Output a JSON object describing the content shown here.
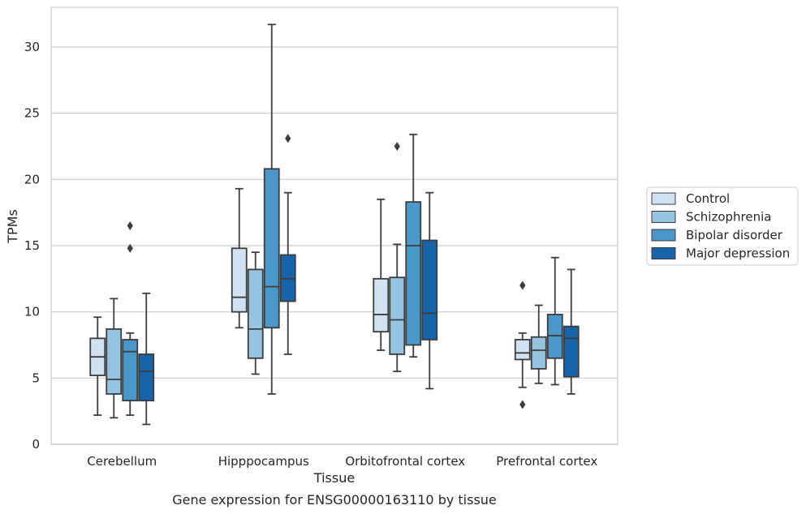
{
  "chart_data": {
    "type": "box",
    "title": "",
    "caption": "Gene expression for ENSG00000163110 by tissue",
    "xlabel": "Tissue",
    "ylabel": "TPMs",
    "ylim": [
      0,
      33
    ],
    "yticks": [
      0,
      5,
      10,
      15,
      20,
      25,
      30
    ],
    "grid": "horizontal",
    "legend_position": "right",
    "categories": [
      "Cerebellum",
      "Hipppocampus",
      "Orbitofrontal cortex",
      "Prefrontal cortex"
    ],
    "series": [
      {
        "name": "Control",
        "color": "#d0e1f2",
        "boxes": [
          {
            "whisker_low": 2.2,
            "q1": 5.2,
            "median": 6.6,
            "q3": 8.0,
            "whisker_high": 9.6,
            "outliers": []
          },
          {
            "whisker_low": 8.8,
            "q1": 10.0,
            "median": 11.1,
            "q3": 14.8,
            "whisker_high": 19.3,
            "outliers": []
          },
          {
            "whisker_low": 7.1,
            "q1": 8.5,
            "median": 9.8,
            "q3": 12.5,
            "whisker_high": 18.5,
            "outliers": []
          },
          {
            "whisker_low": 4.3,
            "q1": 6.4,
            "median": 6.9,
            "q3": 7.9,
            "whisker_high": 8.4,
            "outliers": [
              3.0,
              12.0
            ]
          }
        ]
      },
      {
        "name": "Schizophrenia",
        "color": "#94c4df",
        "boxes": [
          {
            "whisker_low": 2.0,
            "q1": 3.8,
            "median": 4.9,
            "q3": 8.7,
            "whisker_high": 11.0,
            "outliers": []
          },
          {
            "whisker_low": 5.3,
            "q1": 6.5,
            "median": 8.7,
            "q3": 13.2,
            "whisker_high": 14.5,
            "outliers": []
          },
          {
            "whisker_low": 5.5,
            "q1": 6.8,
            "median": 9.4,
            "q3": 12.6,
            "whisker_high": 15.1,
            "outliers": [
              22.5
            ]
          },
          {
            "whisker_low": 4.6,
            "q1": 5.7,
            "median": 7.1,
            "q3": 8.1,
            "whisker_high": 10.5,
            "outliers": []
          }
        ]
      },
      {
        "name": "Bipolar disorder",
        "color": "#4a98c9",
        "boxes": [
          {
            "whisker_low": 2.2,
            "q1": 3.3,
            "median": 7.0,
            "q3": 7.9,
            "whisker_high": 8.4,
            "outliers": [
              14.8,
              16.5
            ]
          },
          {
            "whisker_low": 3.8,
            "q1": 8.8,
            "median": 11.9,
            "q3": 20.8,
            "whisker_high": 31.7,
            "outliers": []
          },
          {
            "whisker_low": 6.6,
            "q1": 7.5,
            "median": 15.0,
            "q3": 18.3,
            "whisker_high": 23.4,
            "outliers": []
          },
          {
            "whisker_low": 4.5,
            "q1": 6.5,
            "median": 8.2,
            "q3": 9.8,
            "whisker_high": 14.1,
            "outliers": []
          }
        ]
      },
      {
        "name": "Major depression",
        "color": "#1764ab",
        "boxes": [
          {
            "whisker_low": 1.5,
            "q1": 3.3,
            "median": 5.5,
            "q3": 6.8,
            "whisker_high": 11.4,
            "outliers": []
          },
          {
            "whisker_low": 6.8,
            "q1": 10.8,
            "median": 12.5,
            "q3": 14.3,
            "whisker_high": 19.0,
            "outliers": [
              23.1
            ]
          },
          {
            "whisker_low": 4.2,
            "q1": 7.9,
            "median": 9.9,
            "q3": 15.4,
            "whisker_high": 19.0,
            "outliers": []
          },
          {
            "whisker_low": 3.8,
            "q1": 5.1,
            "median": 8.0,
            "q3": 8.9,
            "whisker_high": 13.2,
            "outliers": []
          }
        ]
      }
    ]
  }
}
